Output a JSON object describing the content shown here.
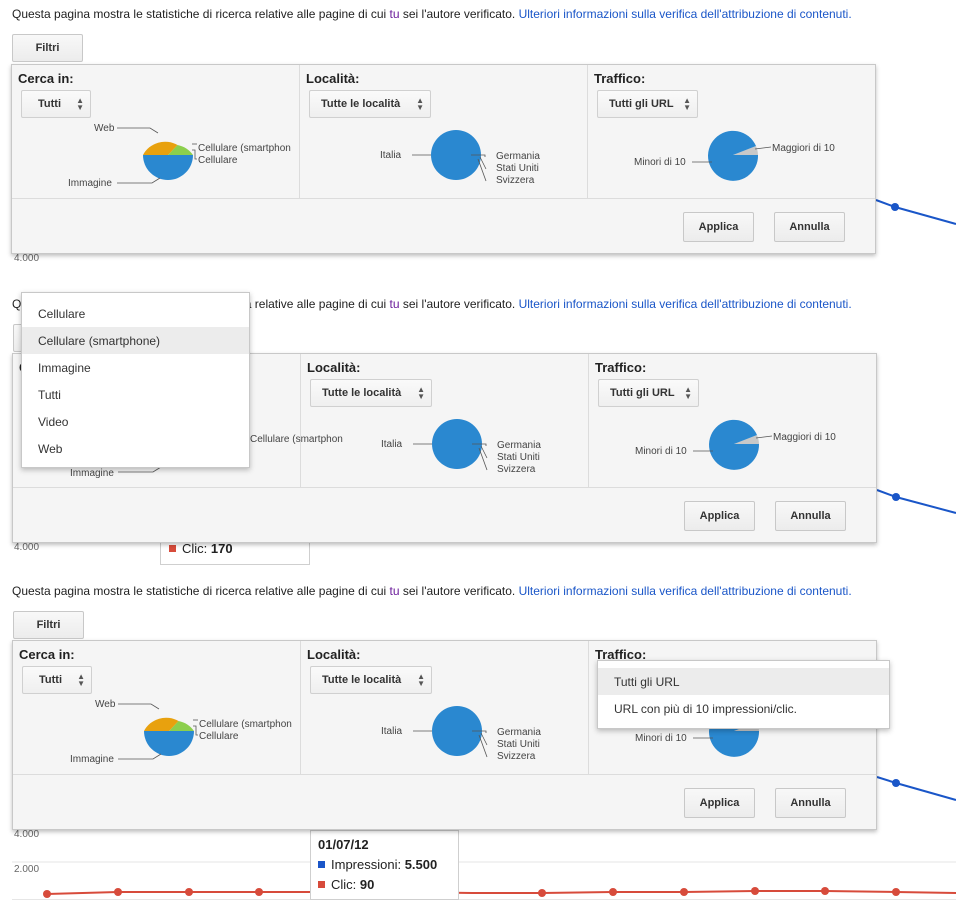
{
  "intro": {
    "text_before": "Questa pagina mostra le statistiche di ricerca relative alle pagine di cui ",
    "tu": "tu",
    "text_after": " sei l'autore verificato. ",
    "link": "Ulteriori informazioni sulla verifica dell'attribuzione di contenuti."
  },
  "filters": {
    "filtri_label": "Filtri",
    "search_in": {
      "title": "Cerca in:",
      "value": "Tutti",
      "legend": [
        "Web",
        "Cellulare (smartphone)",
        "Cellulare",
        "Immagine"
      ],
      "clipped_legend": "Cellulare (smartphon"
    },
    "location": {
      "title": "Località:",
      "value": "Tutte le località",
      "legend_left": "Italia",
      "legend_right": [
        "Germania",
        "Stati Uniti",
        "Svizzera"
      ]
    },
    "traffic": {
      "title": "Traffico:",
      "value": "Tutti gli URL",
      "legend_left": "Minori di 10",
      "legend_right": "Maggiori di 10"
    },
    "apply_label": "Applica",
    "cancel_label": "Annulla"
  },
  "search_in_menu": {
    "options": [
      "Cellulare",
      "Cellulare (smartphone)",
      "Immagine",
      "Tutti",
      "Video",
      "Web"
    ],
    "highlighted": "Cellulare (smartphone)"
  },
  "traffic_menu": {
    "options": [
      "Tutti gli URL",
      "URL con più di 10 impressioni/clic."
    ],
    "highlighted": "Tutti gli URL"
  },
  "chart_bg": {
    "y_ticks": [
      "4.000",
      "2.000"
    ]
  },
  "tooltip_partial": {
    "clic_label": "Clic:",
    "clic_value": "170"
  },
  "tooltip": {
    "date": "01/07/12",
    "impressions_label": "Impressioni:",
    "impressions_value": "5.500",
    "clicks_label": "Clic:",
    "clicks_value": "90"
  },
  "colors": {
    "link": "#1a56c8",
    "pie_blue": "#2a88d0",
    "pie_orange": "#e8a10e",
    "pie_green": "#8ccf4d",
    "pie_gray": "#c8c8c8",
    "impressions_line": "#1a56c8",
    "clicks_line": "#d74b3b"
  },
  "icons": {
    "select_arrows": "updown-arrows-icon"
  }
}
